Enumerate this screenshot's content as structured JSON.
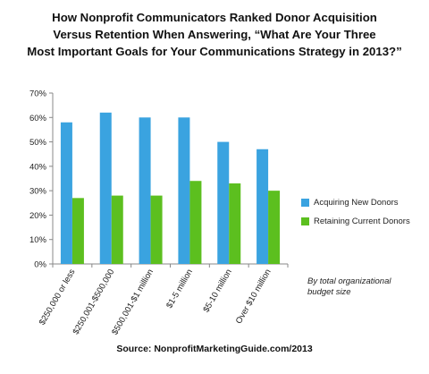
{
  "title_lines": [
    "How Nonprofit Communicators Ranked Donor Acquisition",
    "Versus Retention When Answering, “What Are Your Three",
    "Most Important Goals for Your Communications Strategy in 2013?”"
  ],
  "note": "By total organizational budget size",
  "source": "Source: NonprofitMarketingGuide.com/2013",
  "chart_data": {
    "type": "bar",
    "categories": [
      "$250,000 or less",
      "$250,001-$500,000",
      "$500,001-$1 million",
      "$1-5 million",
      "$5-10 million",
      "Over $10 million"
    ],
    "series": [
      {
        "name": "Acquiring New Donors",
        "values": [
          58,
          62,
          60,
          60,
          50,
          47
        ],
        "color": "#3aa3e0"
      },
      {
        "name": "Retaining Current Donors",
        "values": [
          27,
          28,
          28,
          34,
          33,
          30
        ],
        "color": "#5cbf1f"
      }
    ],
    "y_ticks": [
      "0%",
      "10%",
      "20%",
      "30%",
      "40%",
      "50%",
      "60%",
      "70%"
    ],
    "ylim": [
      0,
      70
    ],
    "grid": false,
    "legend_position": "right"
  }
}
